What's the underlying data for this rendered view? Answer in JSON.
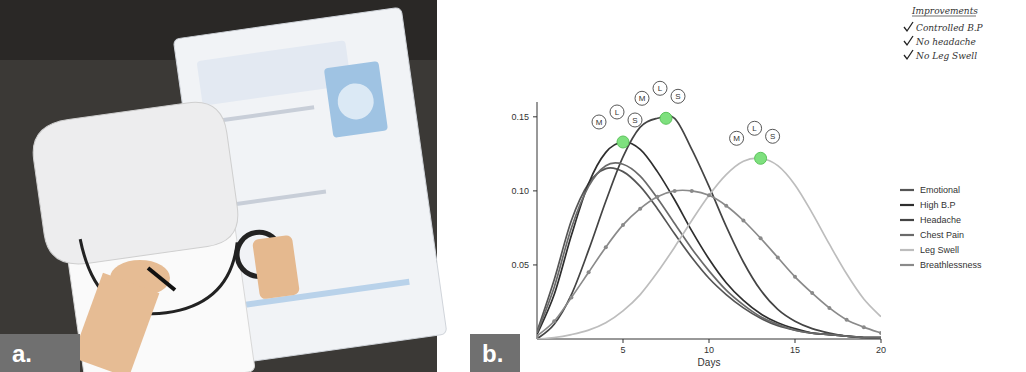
{
  "panels": [
    "a.",
    "b."
  ],
  "improvements": {
    "title": "Improvements",
    "items": [
      "Controlled B.P",
      "No headache",
      "No Leg Swell"
    ]
  },
  "chart_data": {
    "type": "line",
    "x_label": "Days",
    "x": [
      0,
      1,
      2,
      3,
      4,
      5,
      6,
      7,
      8,
      9,
      10,
      11,
      12,
      13,
      14,
      15,
      16,
      17,
      18,
      19,
      20
    ],
    "xlim": [
      0,
      20
    ],
    "xticks": [
      5,
      10,
      15,
      20
    ],
    "ylim": [
      0,
      0.16
    ],
    "yticks": [
      0.05,
      {
        "value": 0.1,
        "label": "0.10"
      },
      0.15
    ],
    "legend": "right",
    "series": [
      {
        "name": "Emotional",
        "color": "#555555",
        "line_style": "solid",
        "values": [
          0.005,
          0.04,
          0.08,
          0.105,
          0.115,
          0.113,
          0.103,
          0.088,
          0.071,
          0.055,
          0.041,
          0.03,
          0.021,
          0.014,
          0.009,
          0.006,
          0.004,
          0.003,
          0.002,
          0.001,
          0.001
        ]
      },
      {
        "name": "High B.P",
        "color": "#2e2e2e",
        "line_style": "solid",
        "values": [
          0.003,
          0.03,
          0.07,
          0.105,
          0.126,
          0.133,
          0.128,
          0.113,
          0.094,
          0.073,
          0.054,
          0.038,
          0.026,
          0.017,
          0.011,
          0.007,
          0.004,
          0.003,
          0.002,
          0.001,
          0.001
        ]
      },
      {
        "name": "Headache",
        "color": "#444444",
        "line_style": "solid",
        "values": [
          0,
          0.01,
          0.03,
          0.06,
          0.093,
          0.123,
          0.143,
          0.149,
          0.149,
          0.128,
          0.103,
          0.076,
          0.052,
          0.033,
          0.02,
          0.012,
          0.007,
          0.004,
          0.002,
          0.001,
          0.001
        ]
      },
      {
        "name": "Chest Pain",
        "color": "#6a6a6a",
        "line_style": "solid",
        "values": [
          0.004,
          0.035,
          0.075,
          0.103,
          0.117,
          0.118,
          0.11,
          0.095,
          0.078,
          0.061,
          0.046,
          0.033,
          0.023,
          0.015,
          0.01,
          0.006,
          0.004,
          0.003,
          0.002,
          0.001,
          0.001
        ]
      },
      {
        "name": "Leg Swell",
        "color": "#bdbdbd",
        "line_style": "solid",
        "values": [
          0,
          0.001,
          0.003,
          0.006,
          0.011,
          0.019,
          0.03,
          0.045,
          0.062,
          0.08,
          0.097,
          0.111,
          0.12,
          0.122,
          0.117,
          0.104,
          0.085,
          0.064,
          0.044,
          0.027,
          0.015
        ]
      },
      {
        "name": "Breathlessness",
        "color": "#8a8a8a",
        "line_style": "solid",
        "marker": "circle",
        "values": [
          0.002,
          0.012,
          0.028,
          0.045,
          0.062,
          0.077,
          0.088,
          0.096,
          0.1,
          0.1,
          0.097,
          0.09,
          0.08,
          0.068,
          0.055,
          0.042,
          0.031,
          0.021,
          0.013,
          0.008,
          0.004
        ]
      }
    ],
    "annotations": [
      {
        "x": 5,
        "y": 0.133,
        "labels": [
          "M",
          "L",
          "S"
        ]
      },
      {
        "x": 7.5,
        "y": 0.149,
        "labels": [
          "M",
          "L",
          "S"
        ]
      },
      {
        "x": 13,
        "y": 0.122,
        "labels": [
          "M",
          "L",
          "S"
        ]
      }
    ]
  }
}
